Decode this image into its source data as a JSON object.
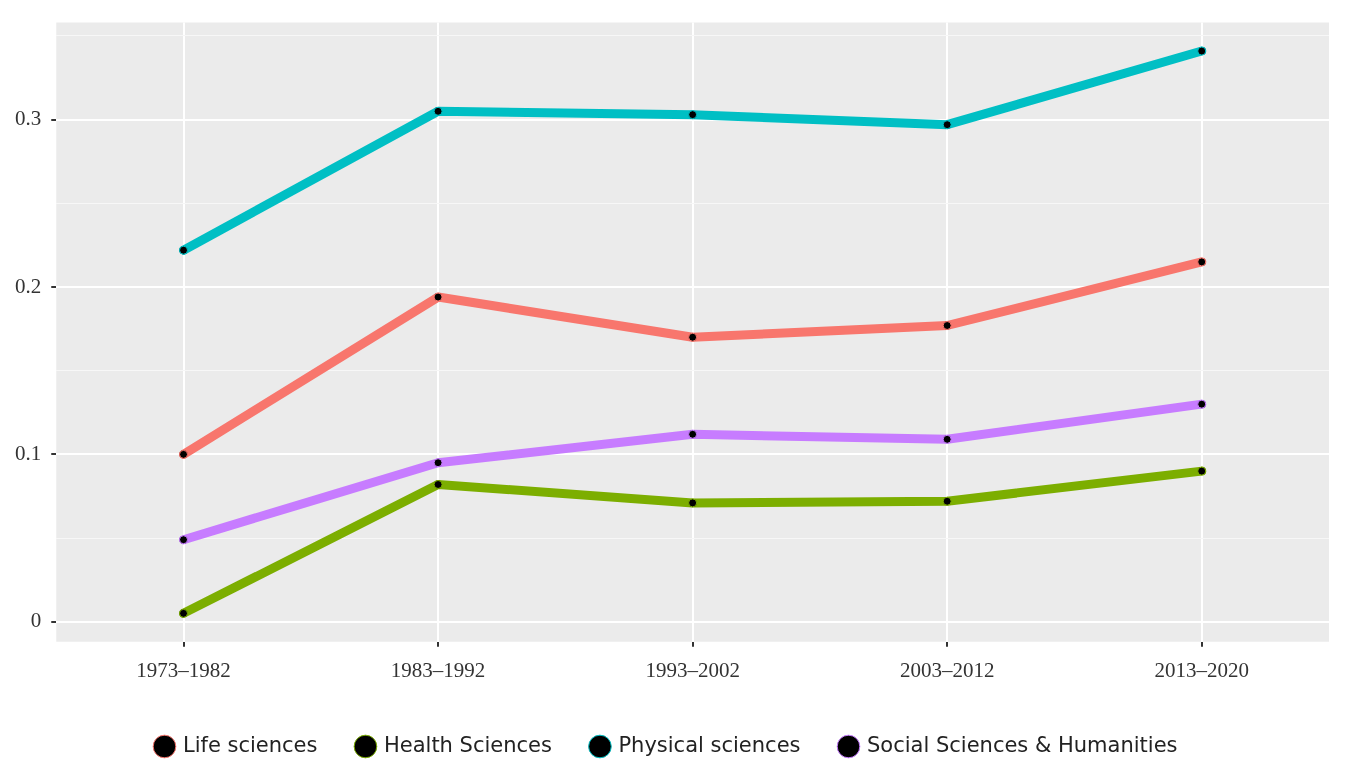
{
  "chart_data": {
    "type": "line",
    "categories": [
      "1973–1982",
      "1983–1992",
      "1993–2002",
      "2003–2012",
      "2013–2020"
    ],
    "series": [
      {
        "name": "Life sciences",
        "color": "#f8766d",
        "values": [
          0.1,
          0.194,
          0.17,
          0.177,
          0.215
        ]
      },
      {
        "name": "Health Sciences",
        "color": "#7cae00",
        "values": [
          0.005,
          0.082,
          0.071,
          0.072,
          0.09
        ]
      },
      {
        "name": "Physical sciences",
        "color": "#00bfc4",
        "values": [
          0.222,
          0.305,
          0.303,
          0.297,
          0.341
        ]
      },
      {
        "name": "Social Sciences & Humanities",
        "color": "#c77cff",
        "values": [
          0.049,
          0.095,
          0.112,
          0.109,
          0.13
        ]
      }
    ],
    "ylim": [
      -0.012,
      0.358
    ],
    "yticks": [
      0,
      {
        "value": 0.05,
        "label": null
      },
      {
        "value": 0.1,
        "label": "0.1"
      },
      {
        "value": 0.15,
        "label": null
      },
      {
        "value": 0.2,
        "label": "0.2"
      },
      {
        "value": 0.25,
        "label": null
      },
      {
        "value": 0.3,
        "label": "0.3"
      },
      {
        "value": 0.35,
        "label": null
      }
    ],
    "grid": true,
    "legend": "bottom",
    "marker": "circle",
    "line_style": "solid"
  }
}
